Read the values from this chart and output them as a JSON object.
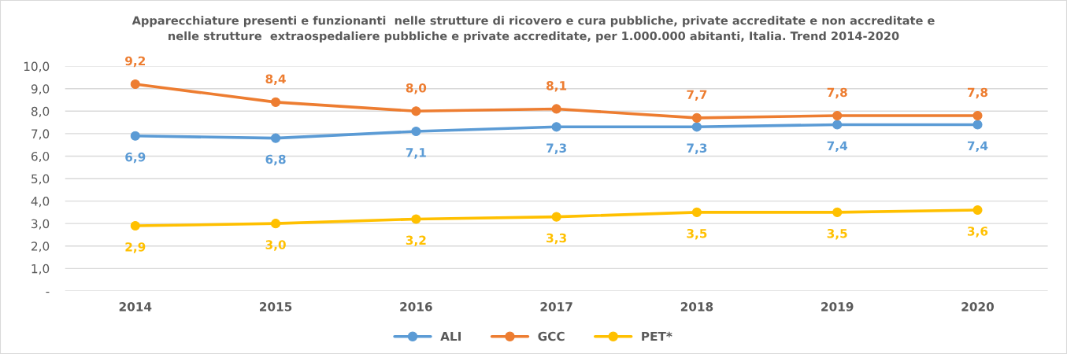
{
  "chart_data": {
    "type": "line",
    "title": "Apparecchiature presenti e funzionanti  nelle strutture di ricovero e cura pubbliche, private accreditate e non accreditate e\nnelle strutture  extraospedaliere pubbliche e private accreditate, per 1.000.000 abitanti, Italia. Trend 2014-2020",
    "categories": [
      "2014",
      "2015",
      "2016",
      "2017",
      "2018",
      "2019",
      "2020"
    ],
    "series": [
      {
        "name": "ALI",
        "color": "#5b9bd5",
        "values": [
          6.9,
          6.8,
          7.1,
          7.3,
          7.3,
          7.4,
          7.4
        ],
        "value_labels": [
          "6,9",
          "6,8",
          "7,1",
          "7,3",
          "7,3",
          "7,4",
          "7,4"
        ]
      },
      {
        "name": "GCC",
        "color": "#ed7d31",
        "values": [
          9.2,
          8.4,
          8.0,
          8.1,
          7.7,
          7.8,
          7.8
        ],
        "value_labels": [
          "9,2",
          "8,4",
          "8,0",
          "8,1",
          "7,7",
          "7,8",
          "7,8"
        ]
      },
      {
        "name": "PET*",
        "color": "#ffc000",
        "values": [
          2.9,
          3.0,
          3.2,
          3.3,
          3.5,
          3.5,
          3.6
        ],
        "value_labels": [
          "2,9",
          "3,0",
          "3,2",
          "3,3",
          "3,5",
          "3,5",
          "3,6"
        ]
      }
    ],
    "ylim": [
      0,
      10
    ],
    "yticks": [
      {
        "value": 0,
        "label": "-"
      },
      {
        "value": 1,
        "label": "1,0"
      },
      {
        "value": 2,
        "label": "2,0"
      },
      {
        "value": 3,
        "label": "3,0"
      },
      {
        "value": 4,
        "label": "4,0"
      },
      {
        "value": 5,
        "label": "5,0"
      },
      {
        "value": 6,
        "label": "6,0"
      },
      {
        "value": 7,
        "label": "7,0"
      },
      {
        "value": 8,
        "label": "8,0"
      },
      {
        "value": 9,
        "label": "9,0"
      },
      {
        "value": 10,
        "label": "10,0"
      }
    ],
    "grid": "y",
    "legend": "bottom",
    "marker": "circle",
    "line_style": "solid"
  }
}
